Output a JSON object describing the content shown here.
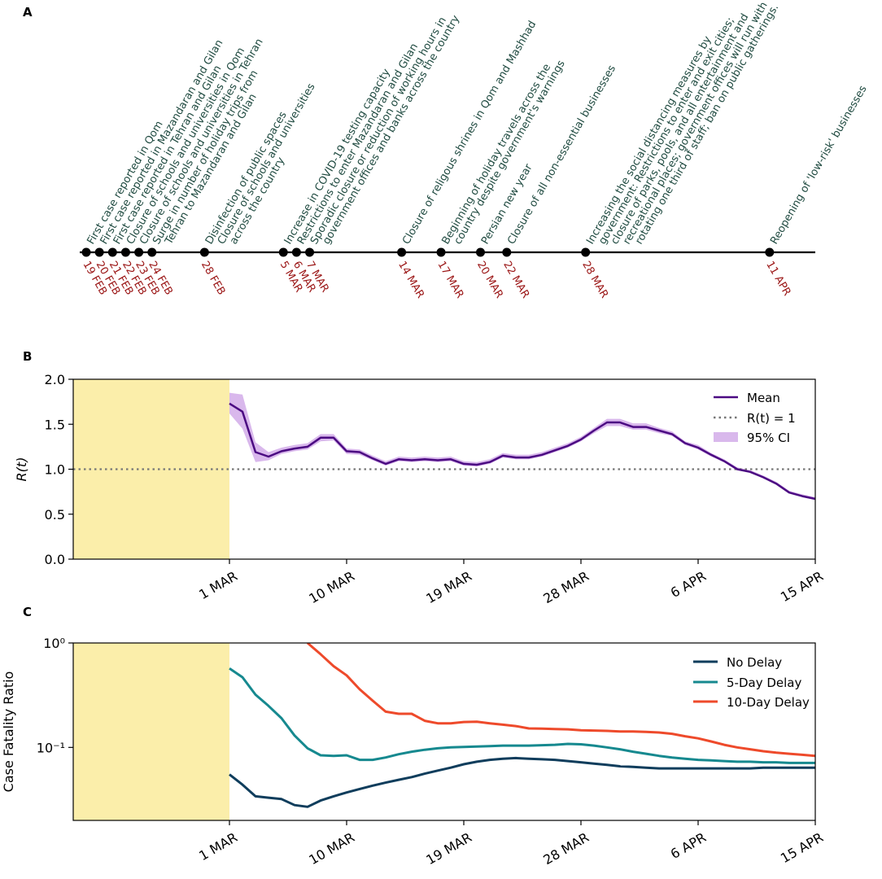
{
  "panels": {
    "a": "A",
    "b": "B",
    "c": "C"
  },
  "timeline": {
    "events": [
      {
        "date": "19 FEB",
        "day": 0,
        "texts": [
          "First case reported in Qom"
        ]
      },
      {
        "date": "20 FEB",
        "day": 1,
        "texts": [
          "First case reported in Mazandaran and Gilan"
        ]
      },
      {
        "date": "21 FEB",
        "day": 2,
        "texts": [
          "First case reported in Tehran and Gilan"
        ]
      },
      {
        "date": "22 FEB",
        "day": 3,
        "texts": [
          "Closure of schools and universities in Qom"
        ]
      },
      {
        "date": "23 FEB",
        "day": 4,
        "texts": [
          "Closure of schools and universities in Tehran"
        ]
      },
      {
        "date": "24 FEB",
        "day": 5,
        "texts": [
          "Surge in number of holiday trips from",
          "Tehran to Mazandaran and Gilan"
        ]
      },
      {
        "date": "28 FEB",
        "day": 9,
        "texts": [
          "Disinfection of public spaces",
          "Closure of schools and universities",
          "across the country"
        ]
      },
      {
        "date": "5 MAR",
        "day": 15,
        "texts": [
          "Increase in COVID-19 testing capacity"
        ]
      },
      {
        "date": "6 MAR",
        "day": 16,
        "texts": [
          "Restrictions to enter Mazandaran and Gilan"
        ]
      },
      {
        "date": "7 MAR",
        "day": 17,
        "texts": [
          "Sporadic closure or reduction of working hours in",
          "government offices and banks across the country"
        ]
      },
      {
        "date": "14 MAR",
        "day": 24,
        "texts": [
          "Closure of religous shrines in Qom and Mashhad"
        ]
      },
      {
        "date": "17 MAR",
        "day": 27,
        "texts": [
          "Beginning of holiday travels across the",
          "country despite government's warnings"
        ]
      },
      {
        "date": "20 MAR",
        "day": 30,
        "texts": [
          "Persian new year"
        ]
      },
      {
        "date": "22 MAR",
        "day": 32,
        "texts": [
          "Closure of all non-essential businesses"
        ]
      },
      {
        "date": "28 MAR",
        "day": 38,
        "texts": [
          "Increasing the social distancing measures by",
          "government: Restrictions to enter and exit cities;",
          "closure of parks, pools, and all entertainment and",
          "recreational places; government offices will run with",
          "rotating one third of staff; ban on public gatherings."
        ]
      },
      {
        "date": "11 APR",
        "day": 52,
        "texts": [
          "Reopening of 'low-risk' businesses"
        ]
      }
    ]
  },
  "chart_data": [
    {
      "type": "line",
      "panel": "B",
      "ylabel": "R(t)",
      "ylim": [
        0,
        2.0
      ],
      "yticks": [
        0.0,
        0.5,
        1.0,
        1.5,
        2.0
      ],
      "ytick_labels": [
        "0.0",
        "0.5",
        "1.0",
        "1.5",
        "2.0"
      ],
      "xlim": [
        -12,
        45
      ],
      "xticks": [
        0,
        9,
        18,
        27,
        36,
        45
      ],
      "xtick_labels": [
        "1 MAR",
        "10 MAR",
        "19 MAR",
        "28 MAR",
        "6 APR",
        "15 APR"
      ],
      "shaded_region": {
        "from": -12,
        "to": 0,
        "color": "#fbeeaa"
      },
      "reference_line": {
        "y": 1.0,
        "label": "R(t) = 1",
        "color": "#777777"
      },
      "legend": {
        "position": "top-right",
        "items": [
          "Mean",
          "R(t) = 1",
          "95% CI"
        ]
      },
      "series": [
        {
          "name": "Mean",
          "color": "#4b0a82",
          "ci_color": "#d9b8ec",
          "x": [
            0,
            1,
            2,
            3,
            4,
            5,
            6,
            7,
            8,
            9,
            10,
            11,
            12,
            13,
            14,
            15,
            16,
            17,
            18,
            19,
            20,
            21,
            22,
            23,
            24,
            25,
            26,
            27,
            28,
            29,
            30,
            31,
            32,
            33,
            34,
            35,
            36,
            37,
            38,
            39,
            40,
            41,
            42,
            43,
            44,
            45
          ],
          "values": [
            1.73,
            1.64,
            1.19,
            1.14,
            1.2,
            1.23,
            1.25,
            1.35,
            1.35,
            1.2,
            1.19,
            1.12,
            1.06,
            1.11,
            1.1,
            1.11,
            1.1,
            1.11,
            1.06,
            1.05,
            1.08,
            1.15,
            1.13,
            1.13,
            1.16,
            1.21,
            1.26,
            1.33,
            1.43,
            1.52,
            1.52,
            1.47,
            1.47,
            1.43,
            1.39,
            1.29,
            1.24,
            1.16,
            1.09,
            1.0,
            0.97,
            0.91,
            0.84,
            0.74,
            0.7,
            0.67
          ],
          "ci_low": [
            1.62,
            1.45,
            1.08,
            1.1,
            1.17,
            1.2,
            1.22,
            1.31,
            1.32,
            1.17,
            1.16,
            1.1,
            1.04,
            1.09,
            1.08,
            1.09,
            1.08,
            1.09,
            1.04,
            1.03,
            1.06,
            1.13,
            1.11,
            1.11,
            1.14,
            1.19,
            1.24,
            1.31,
            1.4,
            1.48,
            1.48,
            1.44,
            1.44,
            1.4,
            1.37,
            1.27,
            1.22,
            1.14,
            1.08,
            0.99,
            0.96,
            0.9,
            0.83,
            0.73,
            0.69,
            0.66
          ],
          "ci_high": [
            1.85,
            1.83,
            1.3,
            1.19,
            1.24,
            1.27,
            1.29,
            1.39,
            1.39,
            1.23,
            1.22,
            1.15,
            1.09,
            1.14,
            1.13,
            1.14,
            1.13,
            1.14,
            1.09,
            1.08,
            1.11,
            1.18,
            1.16,
            1.16,
            1.19,
            1.24,
            1.29,
            1.36,
            1.46,
            1.56,
            1.56,
            1.51,
            1.51,
            1.46,
            1.42,
            1.31,
            1.27,
            1.18,
            1.11,
            1.02,
            0.99,
            0.93,
            0.86,
            0.76,
            0.72,
            0.69
          ]
        }
      ]
    },
    {
      "type": "line",
      "panel": "C",
      "ylabel": "Case Fatality Ratio",
      "yscale": "log",
      "ylim": [
        0.02,
        1.0
      ],
      "yticks": [
        0.1,
        1.0
      ],
      "ytick_labels": [
        "10⁻¹",
        "10⁰"
      ],
      "xlim": [
        -12,
        45
      ],
      "xticks": [
        0,
        9,
        18,
        27,
        36,
        45
      ],
      "xtick_labels": [
        "1 MAR",
        "10 MAR",
        "19 MAR",
        "28 MAR",
        "6 APR",
        "15 APR"
      ],
      "shaded_region": {
        "from": -12,
        "to": 0,
        "color": "#fbeeaa"
      },
      "legend": {
        "position": "top-right",
        "items": [
          "No Delay",
          "5-Day Delay",
          "10-Day Delay"
        ]
      },
      "series": [
        {
          "name": "No Delay",
          "color": "#0f3d5c",
          "x": [
            0,
            1,
            2,
            3,
            4,
            5,
            6,
            7,
            8,
            9,
            10,
            11,
            12,
            13,
            14,
            15,
            16,
            17,
            18,
            19,
            20,
            21,
            22,
            23,
            24,
            25,
            26,
            27,
            28,
            29,
            30,
            31,
            32,
            33,
            34,
            35,
            36,
            37,
            38,
            39,
            40,
            41,
            42,
            43,
            44,
            45
          ],
          "values": [
            0.055,
            0.044,
            0.034,
            0.033,
            0.032,
            0.028,
            0.027,
            0.031,
            0.034,
            0.037,
            0.04,
            0.043,
            0.046,
            0.049,
            0.052,
            0.056,
            0.06,
            0.064,
            0.069,
            0.073,
            0.076,
            0.078,
            0.079,
            0.078,
            0.077,
            0.076,
            0.074,
            0.072,
            0.07,
            0.068,
            0.066,
            0.065,
            0.064,
            0.063,
            0.063,
            0.063,
            0.063,
            0.063,
            0.063,
            0.063,
            0.063,
            0.064,
            0.064,
            0.064,
            0.064,
            0.064
          ]
        },
        {
          "name": "5-Day Delay",
          "color": "#16898f",
          "x": [
            0,
            1,
            2,
            3,
            4,
            5,
            6,
            7,
            8,
            9,
            10,
            11,
            12,
            13,
            14,
            15,
            16,
            17,
            18,
            19,
            20,
            21,
            22,
            23,
            24,
            25,
            26,
            27,
            28,
            29,
            30,
            31,
            32,
            33,
            34,
            35,
            36,
            37,
            38,
            39,
            40,
            41,
            42,
            43,
            44,
            45
          ],
          "values": [
            0.57,
            0.47,
            0.32,
            0.25,
            0.19,
            0.13,
            0.098,
            0.084,
            0.083,
            0.084,
            0.076,
            0.076,
            0.08,
            0.086,
            0.091,
            0.095,
            0.098,
            0.1,
            0.101,
            0.102,
            0.103,
            0.104,
            0.104,
            0.104,
            0.105,
            0.106,
            0.108,
            0.107,
            0.104,
            0.1,
            0.096,
            0.091,
            0.087,
            0.083,
            0.08,
            0.078,
            0.076,
            0.075,
            0.074,
            0.073,
            0.073,
            0.072,
            0.072,
            0.071,
            0.071,
            0.071
          ]
        },
        {
          "name": "10-Day Delay",
          "color": "#ee4a2b",
          "x": [
            6,
            7,
            8,
            9,
            10,
            11,
            12,
            13,
            14,
            15,
            16,
            17,
            18,
            19,
            20,
            21,
            22,
            23,
            24,
            25,
            26,
            27,
            28,
            29,
            30,
            31,
            32,
            33,
            34,
            35,
            36,
            37,
            38,
            39,
            40,
            41,
            42,
            43,
            44,
            45
          ],
          "values": [
            1.0,
            0.78,
            0.6,
            0.49,
            0.36,
            0.28,
            0.22,
            0.21,
            0.21,
            0.18,
            0.17,
            0.17,
            0.175,
            0.176,
            0.17,
            0.165,
            0.16,
            0.152,
            0.151,
            0.15,
            0.149,
            0.146,
            0.145,
            0.144,
            0.142,
            0.142,
            0.141,
            0.139,
            0.135,
            0.128,
            0.122,
            0.114,
            0.106,
            0.1,
            0.096,
            0.092,
            0.089,
            0.087,
            0.085,
            0.083
          ]
        }
      ]
    }
  ]
}
